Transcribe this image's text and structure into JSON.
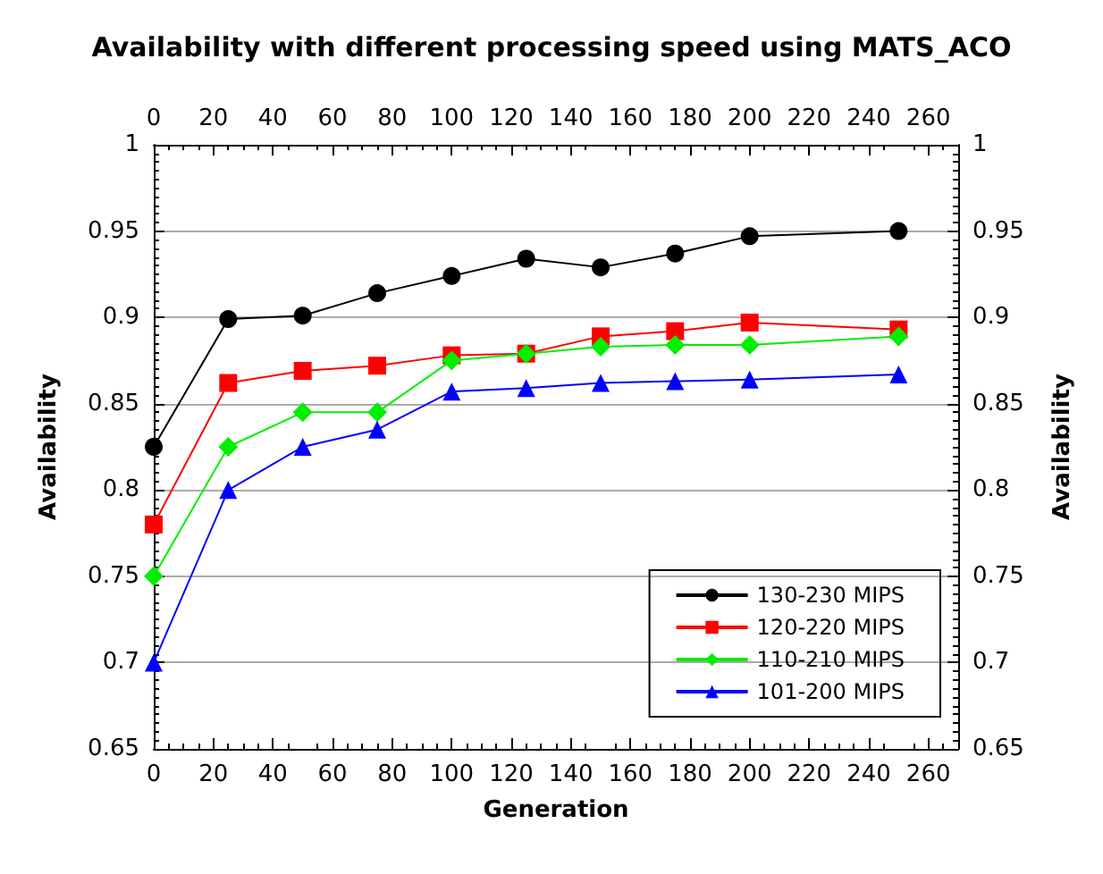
{
  "chart_data": {
    "type": "line",
    "title": "Availability with different processing speed using MATS_ACO",
    "xlabel": "Generation",
    "ylabel": "Availability",
    "y2label": "Availability",
    "x": [
      0,
      25,
      50,
      75,
      100,
      125,
      150,
      175,
      200,
      250
    ],
    "xlim": [
      0,
      270
    ],
    "xticks": [
      0,
      20,
      40,
      60,
      80,
      100,
      120,
      140,
      160,
      180,
      200,
      220,
      240,
      260
    ],
    "x2lim": [
      0,
      270
    ],
    "x2ticks": [
      0,
      20,
      40,
      60,
      80,
      100,
      120,
      140,
      160,
      180,
      200,
      220,
      240,
      260
    ],
    "ylim": [
      0.65,
      1
    ],
    "yticks": [
      0.65,
      0.7,
      0.75,
      0.8,
      0.85,
      0.9,
      0.95,
      1
    ],
    "y2lim": [
      0.65,
      1
    ],
    "y2ticks": [
      0.65,
      0.7,
      0.75,
      0.8,
      0.85,
      0.9,
      0.95,
      1
    ],
    "grid": "y",
    "legend": "bottom right",
    "line_style": "solid",
    "series": [
      {
        "name": "130-230 MIPS",
        "color": "#000000",
        "marker": "circle",
        "values": [
          0.825,
          0.899,
          0.901,
          0.914,
          0.924,
          0.934,
          0.929,
          0.937,
          0.947,
          0.95
        ]
      },
      {
        "name": "120-220 MIPS",
        "color": "#ff0000",
        "marker": "square",
        "values": [
          0.78,
          0.862,
          0.869,
          0.872,
          0.878,
          0.879,
          0.889,
          0.892,
          0.897,
          0.893
        ]
      },
      {
        "name": "110-210 MIPS",
        "color": "#00ee00",
        "marker": "diamond",
        "values": [
          0.75,
          0.825,
          0.845,
          0.845,
          0.875,
          0.879,
          0.883,
          0.884,
          0.884,
          0.889
        ]
      },
      {
        "name": "101-200 MIPS",
        "color": "#0000ff",
        "marker": "triangle",
        "values": [
          0.7,
          0.8,
          0.825,
          0.835,
          0.857,
          0.859,
          0.862,
          0.863,
          0.864,
          0.867
        ]
      }
    ]
  }
}
